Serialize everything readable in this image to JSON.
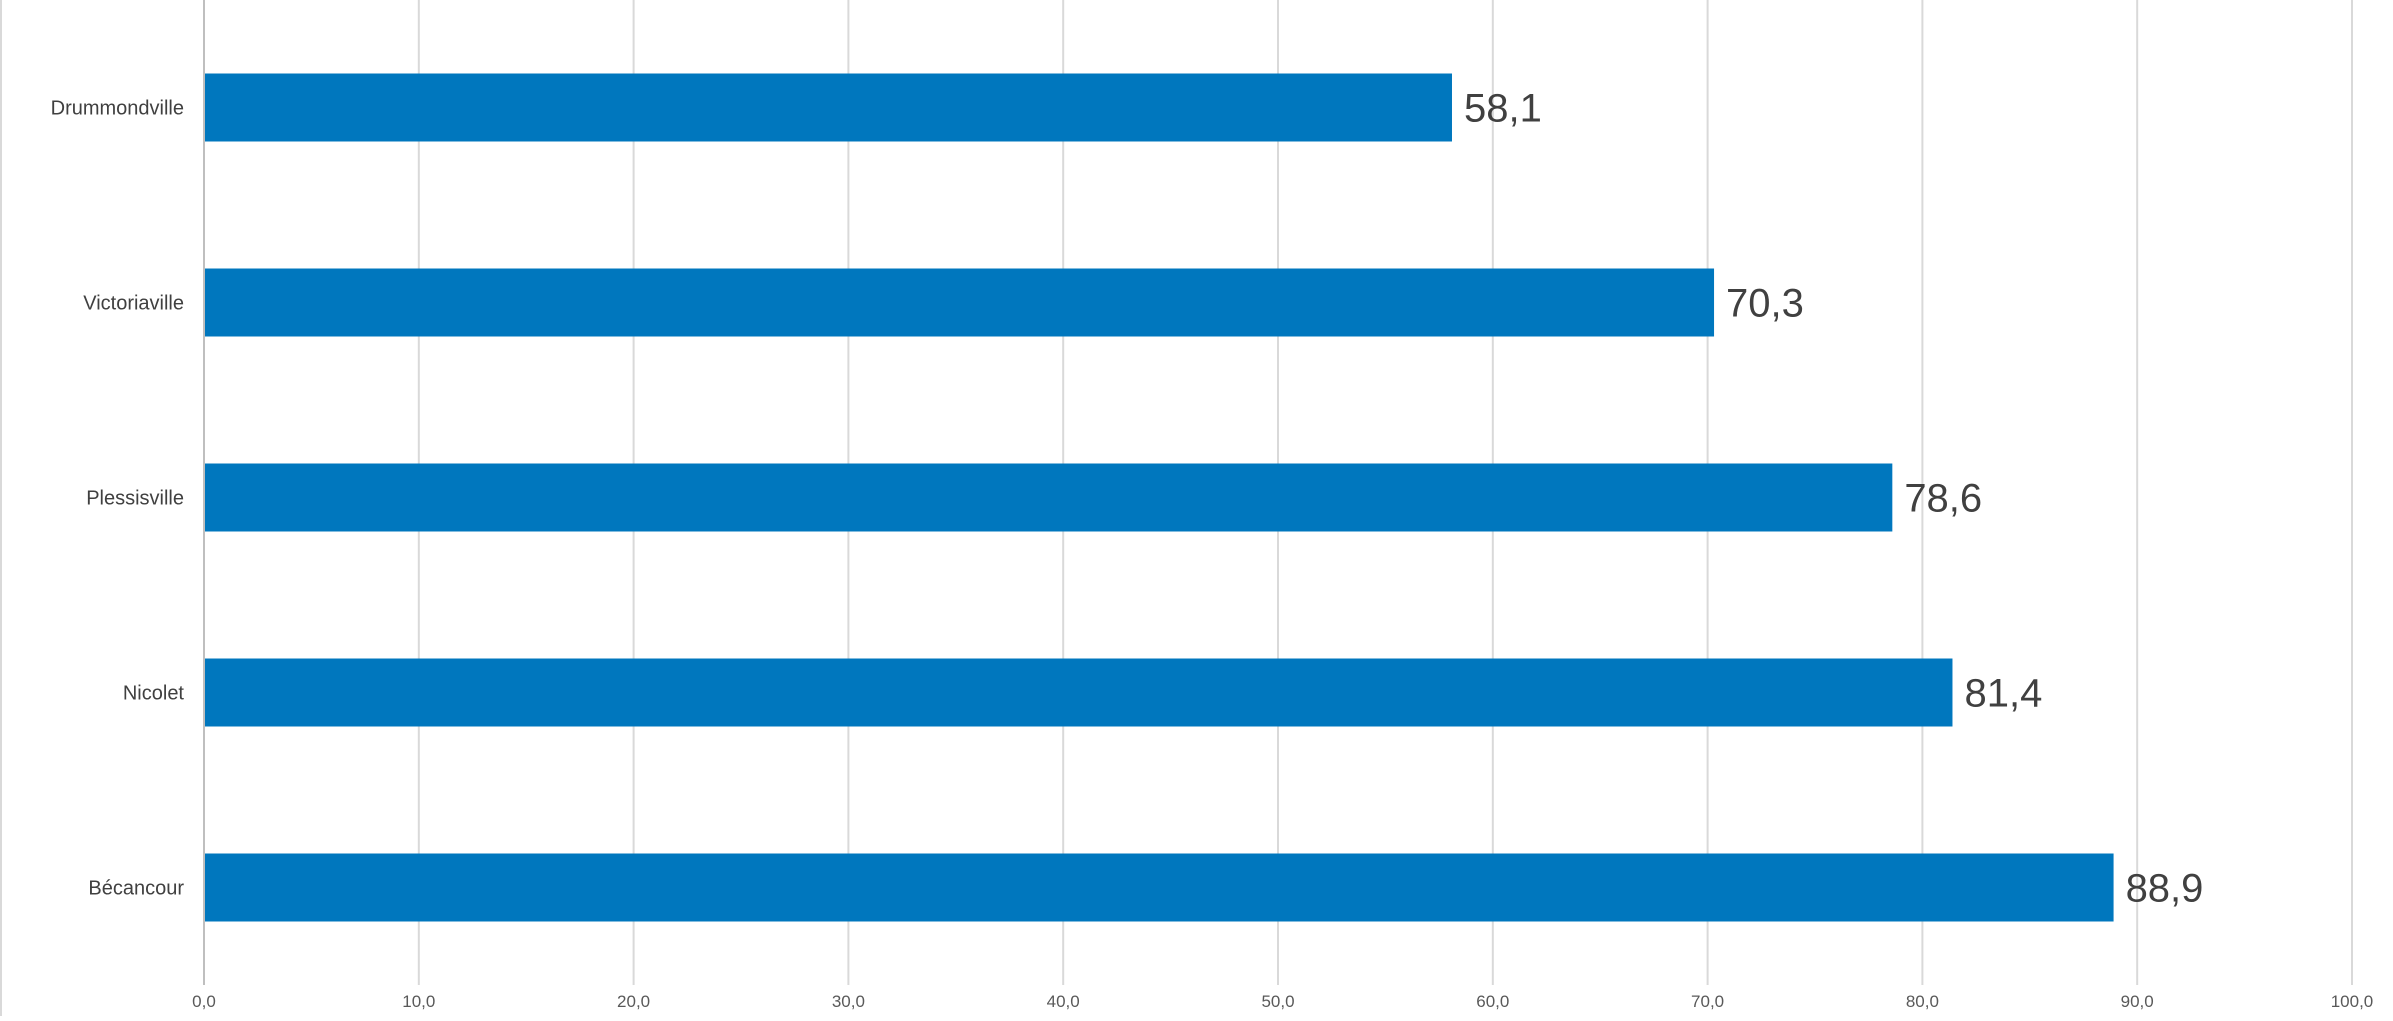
{
  "chart_data": {
    "type": "bar",
    "orientation": "horizontal",
    "categories": [
      "Drummondville",
      "Victoriaville",
      "Plessisville",
      "Nicolet",
      "Bécancour"
    ],
    "values": [
      58.1,
      70.3,
      78.6,
      81.4,
      88.9
    ],
    "value_labels": [
      "58,1",
      "70,3",
      "78,6",
      "81,4",
      "88,9"
    ],
    "xlim": [
      0,
      100
    ],
    "x_ticks": [
      0,
      10,
      20,
      30,
      40,
      50,
      60,
      70,
      80,
      90,
      100
    ],
    "x_tick_labels": [
      "0,0",
      "10,0",
      "20,0",
      "30,0",
      "40,0",
      "50,0",
      "60,0",
      "70,0",
      "80,0",
      "90,0",
      "100,0"
    ],
    "title": "",
    "xlabel": "",
    "ylabel": "",
    "grid": "vertical",
    "legend": "none",
    "bar_color": "#0077BE"
  }
}
